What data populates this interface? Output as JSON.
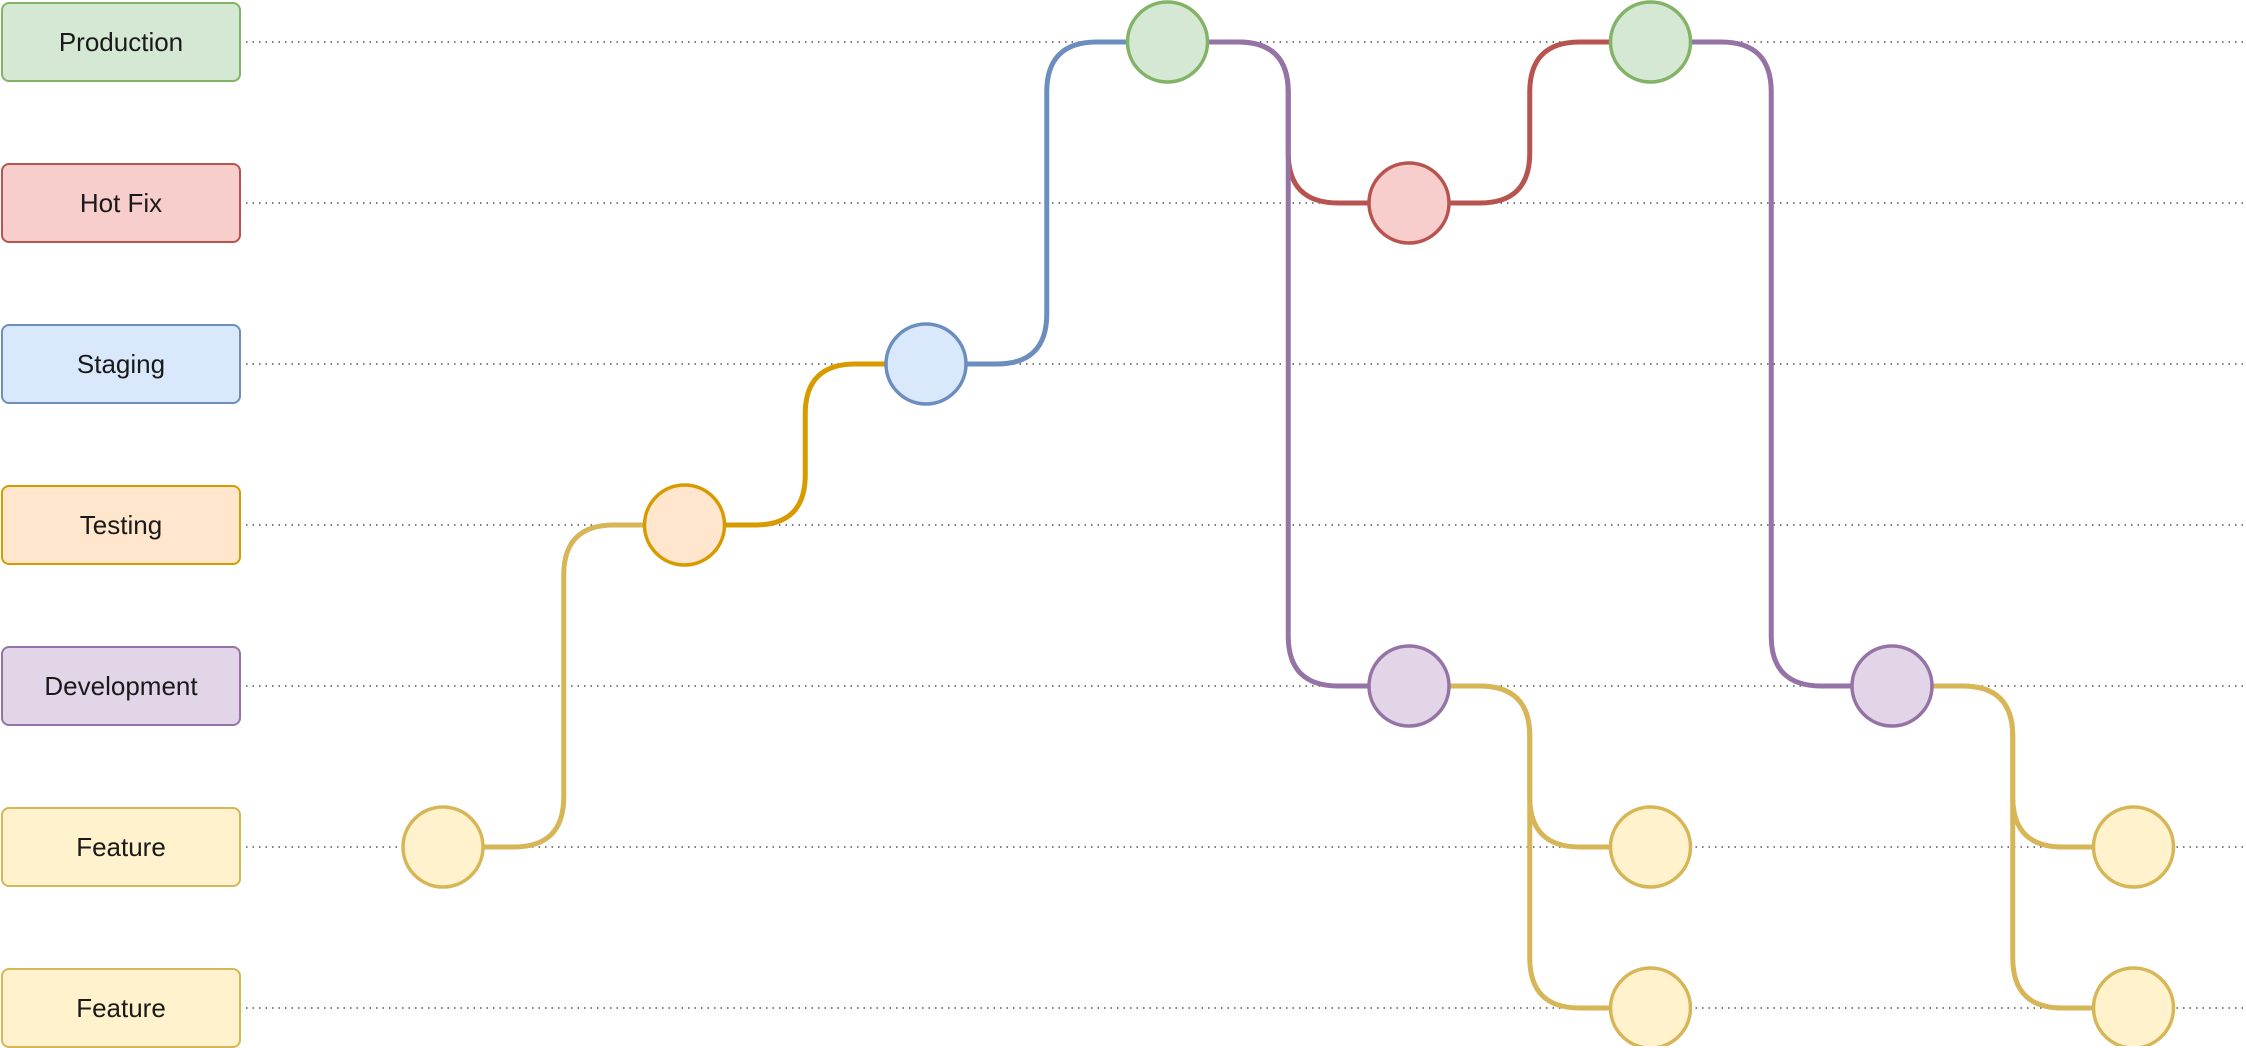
{
  "lanes": [
    {
      "id": "production",
      "label": "Production",
      "fill": "#d5e8d4",
      "stroke": "#82b366"
    },
    {
      "id": "hotfix",
      "label": "Hot Fix",
      "fill": "#f8cecc",
      "stroke": "#b85450"
    },
    {
      "id": "staging",
      "label": "Staging",
      "fill": "#dae8fc",
      "stroke": "#6c8ebf"
    },
    {
      "id": "testing",
      "label": "Testing",
      "fill": "#ffe6cc",
      "stroke": "#d79b00"
    },
    {
      "id": "development",
      "label": "Development",
      "fill": "#e1d5e7",
      "stroke": "#9673a6"
    },
    {
      "id": "feature-1",
      "label": "Feature",
      "fill": "#fff2cc",
      "stroke": "#d6b656"
    },
    {
      "id": "feature-2",
      "label": "Feature",
      "fill": "#fff2cc",
      "stroke": "#d6b656"
    }
  ],
  "commits": [
    {
      "id": "c1",
      "lane": "feature-1"
    },
    {
      "id": "c2",
      "lane": "testing"
    },
    {
      "id": "c3",
      "lane": "staging"
    },
    {
      "id": "c4",
      "lane": "production"
    },
    {
      "id": "c5",
      "lane": "hotfix"
    },
    {
      "id": "c6",
      "lane": "development"
    },
    {
      "id": "c7",
      "lane": "production"
    },
    {
      "id": "c8",
      "lane": "feature-1"
    },
    {
      "id": "c9",
      "lane": "feature-2"
    },
    {
      "id": "c10",
      "lane": "development"
    },
    {
      "id": "c11",
      "lane": "feature-1"
    },
    {
      "id": "c12",
      "lane": "feature-2"
    }
  ],
  "connections": [
    {
      "from": "c1",
      "to": "c2",
      "color": "#d6b656"
    },
    {
      "from": "c2",
      "to": "c3",
      "color": "#d79b00"
    },
    {
      "from": "c3",
      "to": "c4",
      "color": "#6c8ebf"
    },
    {
      "from": "c4",
      "to": "c5",
      "color": "#b85450"
    },
    {
      "from": "c4",
      "to": "c6",
      "color": "#9673a6"
    },
    {
      "from": "c5",
      "to": "c7",
      "color": "#b85450"
    },
    {
      "from": "c6",
      "to": "c8",
      "color": "#d6b656"
    },
    {
      "from": "c6",
      "to": "c9",
      "color": "#d6b656"
    },
    {
      "from": "c7",
      "to": "c10",
      "color": "#9673a6"
    },
    {
      "from": "c10",
      "to": "c11",
      "color": "#d6b656"
    },
    {
      "from": "c10",
      "to": "c12",
      "color": "#d6b656"
    }
  ]
}
